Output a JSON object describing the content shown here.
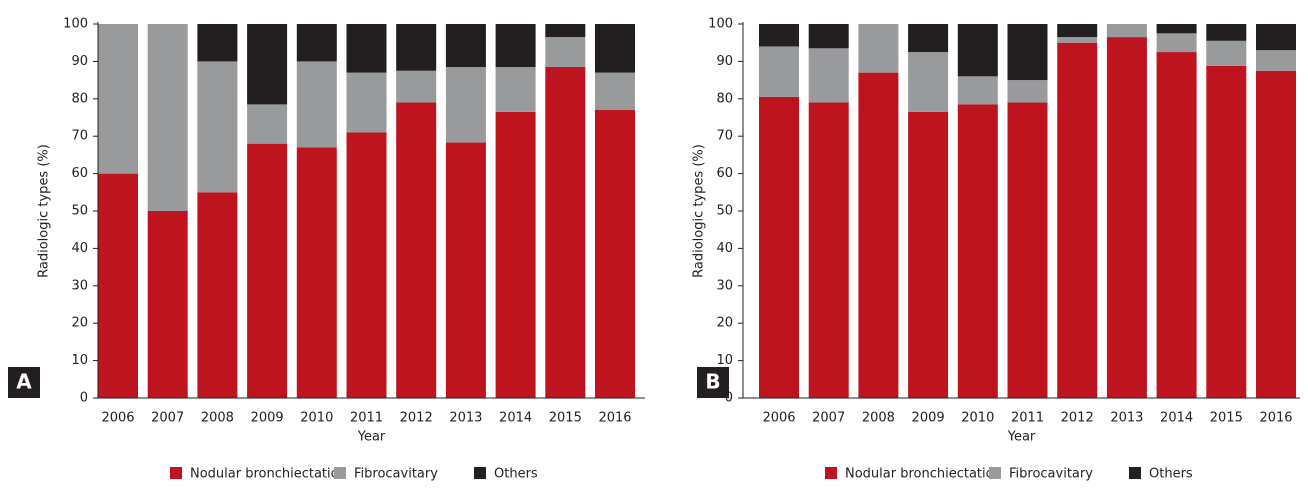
{
  "chart_data": [
    {
      "type": "bar",
      "stacked": true,
      "panel": "A",
      "xlabel": "Year",
      "ylabel": "Radiologic types (%)",
      "categories": [
        "2006",
        "2007",
        "2008",
        "2009",
        "2010",
        "2011",
        "2012",
        "2013",
        "2014",
        "2015",
        "2016"
      ],
      "series": [
        {
          "name": "Nodular bronchiectatic",
          "color": "#be1420",
          "values": [
            60,
            50,
            55,
            68,
            67,
            71,
            79,
            68.3,
            76.5,
            88.5,
            77
          ]
        },
        {
          "name": "Fibrocavitary",
          "color": "#999a9c",
          "values": [
            40,
            50,
            35,
            10.5,
            23,
            16,
            8.5,
            20.2,
            12,
            8,
            10
          ]
        },
        {
          "name": "Others",
          "color": "#231f20",
          "values": [
            0,
            0,
            10,
            21.5,
            10,
            13,
            12.5,
            11.5,
            11.5,
            3.5,
            13
          ]
        }
      ],
      "ylim": [
        0,
        100
      ],
      "yticks": [
        0,
        10,
        20,
        30,
        40,
        50,
        60,
        70,
        80,
        90,
        100
      ],
      "grid": false,
      "legend": "bottom"
    },
    {
      "type": "bar",
      "stacked": true,
      "panel": "B",
      "xlabel": "Year",
      "ylabel": "Radiologic types (%)",
      "categories": [
        "2006",
        "2007",
        "2008",
        "2009",
        "2010",
        "2011",
        "2012",
        "2013",
        "2014",
        "2015",
        "2016"
      ],
      "series": [
        {
          "name": "Nodular bronchiectatic",
          "color": "#be1420",
          "values": [
            80.5,
            79,
            87,
            76.5,
            78.5,
            79,
            95,
            96.5,
            92.5,
            88.8,
            87.5
          ]
        },
        {
          "name": "Fibrocavitary",
          "color": "#999a9c",
          "values": [
            13.5,
            14.5,
            13,
            16,
            7.5,
            6,
            1.5,
            3.5,
            5,
            6.7,
            5.5
          ]
        },
        {
          "name": "Others",
          "color": "#231f20",
          "values": [
            6,
            6.5,
            0,
            7.5,
            14,
            15,
            3.5,
            0,
            2.5,
            4.5,
            7
          ]
        }
      ],
      "ylim": [
        0,
        100
      ],
      "yticks": [
        0,
        10,
        20,
        30,
        40,
        50,
        60,
        70,
        80,
        90,
        100
      ],
      "grid": false,
      "legend": "bottom"
    }
  ]
}
